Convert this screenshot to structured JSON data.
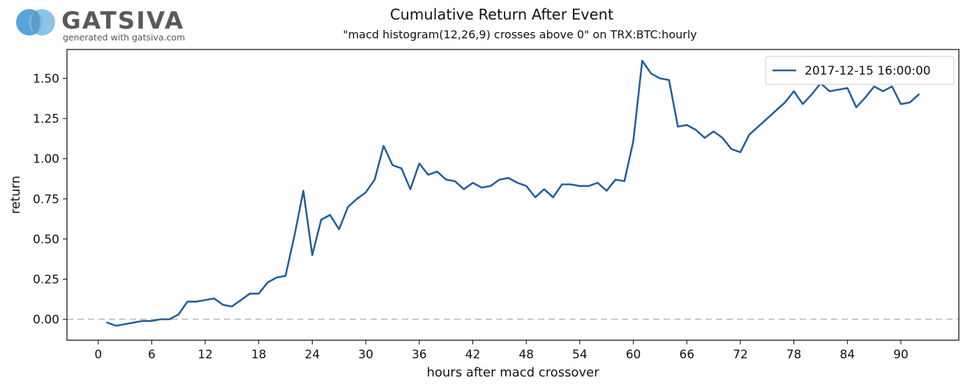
{
  "logo": {
    "wordmark": "GATSIVA",
    "tagline": "generated with gatsiva.com",
    "colors": {
      "circle_left": "#4d9fd6",
      "circle_right": "#7ab8e3",
      "text": "#5a5a5a"
    }
  },
  "chart_data": {
    "type": "line",
    "title": "Cumulative Return After Event",
    "subtitle": "\"macd histogram(12,26,9) crosses above 0\" on TRX:BTC:hourly",
    "xlabel": "hours after macd crossover",
    "ylabel": "return",
    "xlim": [
      -3.5,
      96.5
    ],
    "ylim": [
      -0.13,
      1.68
    ],
    "xticks": [
      0,
      6,
      12,
      18,
      24,
      30,
      36,
      42,
      48,
      54,
      60,
      66,
      72,
      78,
      84,
      90
    ],
    "yticks": [
      0.0,
      0.25,
      0.5,
      0.75,
      1.0,
      1.25,
      1.5
    ],
    "ytick_labels": [
      "0.00",
      "0.25",
      "0.50",
      "0.75",
      "1.00",
      "1.25",
      "1.50"
    ],
    "grid": false,
    "legend_position": "top-right",
    "reference_line": {
      "y": 0,
      "style": "dashed",
      "color": "#c8c8c8"
    },
    "series": [
      {
        "name": "2017-12-15 16:00:00",
        "color": "#1f5f9c",
        "x": [
          1,
          2,
          3,
          4,
          5,
          6,
          7,
          8,
          9,
          10,
          11,
          12,
          13,
          14,
          15,
          16,
          17,
          18,
          19,
          20,
          21,
          22,
          23,
          24,
          25,
          26,
          27,
          28,
          29,
          30,
          31,
          32,
          33,
          34,
          35,
          36,
          37,
          38,
          39,
          40,
          41,
          42,
          43,
          44,
          45,
          46,
          47,
          48,
          49,
          50,
          51,
          52,
          53,
          54,
          55,
          56,
          57,
          58,
          59,
          60,
          61,
          62,
          63,
          64,
          65,
          66,
          67,
          68,
          69,
          70,
          71,
          72,
          73,
          74,
          75,
          76,
          77,
          78,
          79,
          80,
          81,
          82,
          83,
          84,
          85,
          86,
          87,
          88,
          89,
          90,
          91,
          92
        ],
        "values": [
          -0.02,
          -0.04,
          -0.03,
          -0.02,
          -0.01,
          -0.01,
          0.0,
          0.0,
          0.03,
          0.11,
          0.11,
          0.12,
          0.13,
          0.09,
          0.08,
          0.12,
          0.16,
          0.16,
          0.23,
          0.26,
          0.27,
          0.52,
          0.8,
          0.4,
          0.62,
          0.65,
          0.56,
          0.7,
          0.75,
          0.79,
          0.87,
          1.08,
          0.96,
          0.94,
          0.81,
          0.97,
          0.9,
          0.92,
          0.87,
          0.86,
          0.81,
          0.85,
          0.82,
          0.83,
          0.87,
          0.88,
          0.85,
          0.83,
          0.76,
          0.81,
          0.76,
          0.84,
          0.84,
          0.83,
          0.83,
          0.85,
          0.8,
          0.87,
          0.86,
          1.11,
          1.61,
          1.53,
          1.5,
          1.49,
          1.2,
          1.21,
          1.18,
          1.13,
          1.17,
          1.13,
          1.06,
          1.04,
          1.15,
          1.2,
          1.25,
          1.3,
          1.35,
          1.42,
          1.34,
          1.4,
          1.47,
          1.42,
          1.43,
          1.44,
          1.32,
          1.38,
          1.45,
          1.42,
          1.45,
          1.34,
          1.35,
          1.4
        ]
      }
    ]
  }
}
